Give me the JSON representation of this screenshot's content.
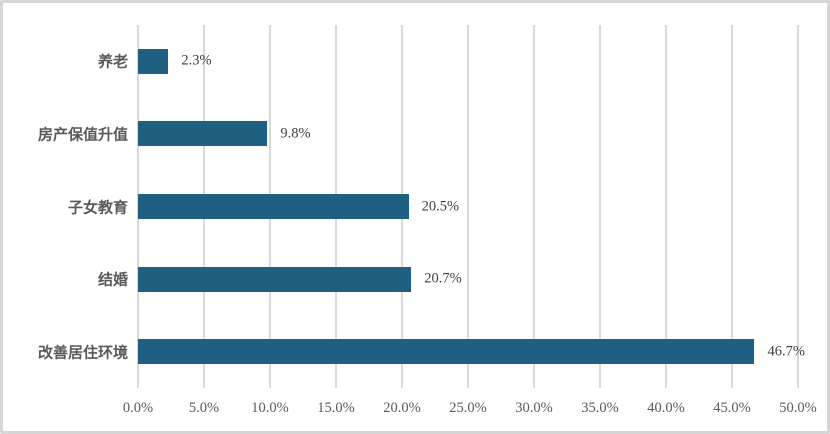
{
  "chart_data": {
    "type": "bar",
    "orientation": "horizontal",
    "title": "",
    "xlabel": "",
    "ylabel": "",
    "categories": [
      "养老",
      "房产保值升值",
      "子女教育",
      "结婚",
      "改善居住环境"
    ],
    "values": [
      2.3,
      9.8,
      20.5,
      20.7,
      46.7
    ],
    "value_labels": [
      "2.3%",
      "9.8%",
      "20.5%",
      "20.7%",
      "46.7%"
    ],
    "xlim": [
      0,
      50
    ],
    "x_tick_values": [
      0,
      5,
      10,
      15,
      20,
      25,
      30,
      35,
      40,
      45,
      50
    ],
    "x_tick_labels": [
      "0.0%",
      "5.0%",
      "10.0%",
      "15.0%",
      "20.0%",
      "25.0%",
      "30.0%",
      "35.0%",
      "40.0%",
      "45.0%",
      "50.0%"
    ],
    "grid": true,
    "legend": "none",
    "bar_color": "#1f5f7f",
    "gridline_color": "#d9d9d9",
    "category_label_color": "#595959",
    "value_label_color": "#3f3f3f",
    "tick_label_color": "#595959"
  }
}
